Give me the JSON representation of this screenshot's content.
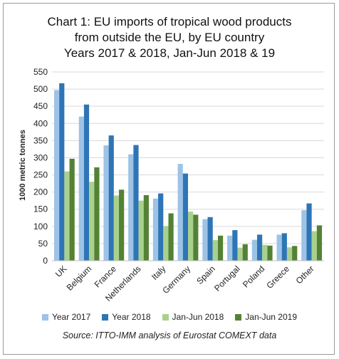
{
  "chart_data": {
    "type": "bar",
    "title": [
      "Chart 1: EU imports of tropical wood products",
      "from outside the EU, by EU country",
      "Years 2017 & 2018, Jan-Jun 2018 & 19"
    ],
    "ylabel": "1000 metric tonnes",
    "ylim": [
      0,
      550
    ],
    "yticks": [
      0,
      50,
      100,
      150,
      200,
      250,
      300,
      350,
      400,
      450,
      500,
      550
    ],
    "grid": true,
    "legend_position": "bottom",
    "categories": [
      "UK",
      "Belgium",
      "France",
      "Netherlands",
      "Italy",
      "Germany",
      "Spain",
      "Portugal",
      "Poland",
      "Greece",
      "Other"
    ],
    "series": [
      {
        "name": "Year 2017",
        "color": "#9dc3e6",
        "values": [
          497,
          420,
          336,
          310,
          181,
          282,
          121,
          73,
          61,
          76,
          147
        ]
      },
      {
        "name": "Year 2018",
        "color": "#2e75b6",
        "values": [
          517,
          455,
          365,
          337,
          196,
          254,
          127,
          89,
          76,
          80,
          167
        ]
      },
      {
        "name": "Jan-Jun 2018",
        "color": "#a9d18e",
        "values": [
          260,
          230,
          190,
          175,
          101,
          143,
          60,
          38,
          46,
          39,
          86
        ]
      },
      {
        "name": "Jan-Jun 2019",
        "color": "#548235",
        "values": [
          297,
          272,
          207,
          191,
          138,
          134,
          73,
          48,
          44,
          43,
          103
        ]
      }
    ],
    "source": "Source: ITTO-IMM analysis of Eurostat COMEXT data"
  }
}
